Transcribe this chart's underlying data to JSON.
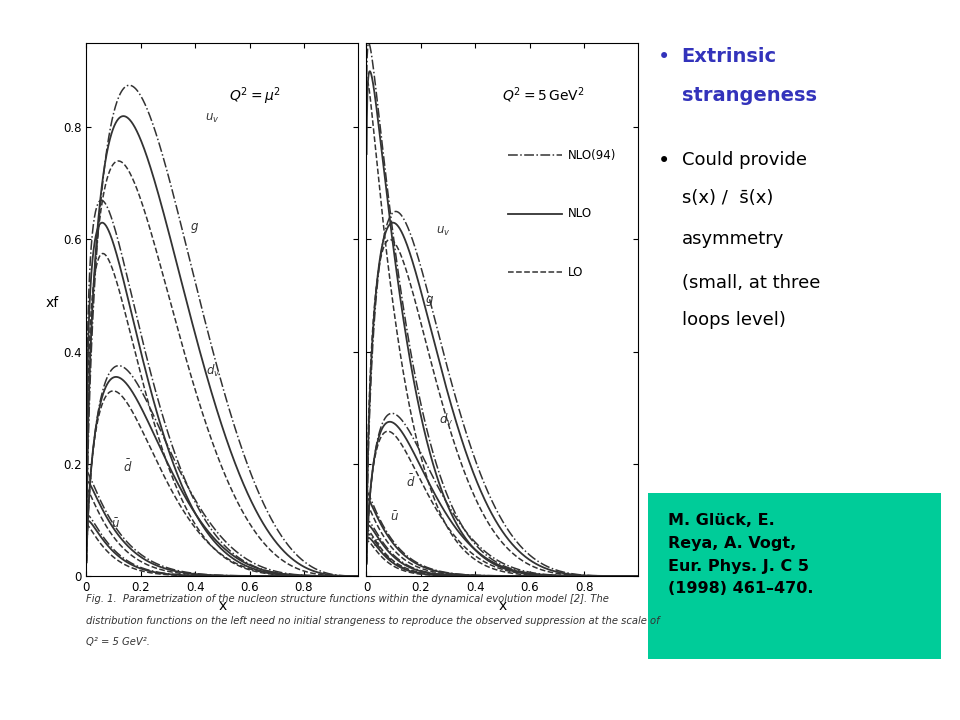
{
  "background_color": "#ffffff",
  "bullet_color": "#3333bb",
  "bullet1_text_line1": "Extrinsic",
  "bullet1_text_line2": "strangeness",
  "bullet2_line1": "Could provide",
  "bullet2_line2": "s(x) /  s̄(x)",
  "bullet2_line3": "asymmetry",
  "bullet2_line4": "(small, at three",
  "bullet2_line5": "loops level)",
  "ref_bg": "#00cc99",
  "ref_text": "M. Glück, E.\nReya, A. Vogt,\nEur. Phys. J. C 5\n(1998) 461–470.",
  "fig_caption_line1": "Fig. 1.  Parametrization of the nucleon structure functions within the dynamical evolution model [2]. The",
  "fig_caption_line2": "distribution functions on the left need no initial strangeness to reproduce the observed suppression at the scale of",
  "fig_caption_line3": "Q² = 5 GeV².",
  "ylabel": "xf",
  "xlabel_left": "x",
  "xlabel_right": "x",
  "title_left": "$Q^2 = \\mu^2$",
  "title_right": "$Q^2 = 5\\,\\mathrm{GeV}^2$",
  "xmax": 1.0,
  "ymax": 0.95
}
